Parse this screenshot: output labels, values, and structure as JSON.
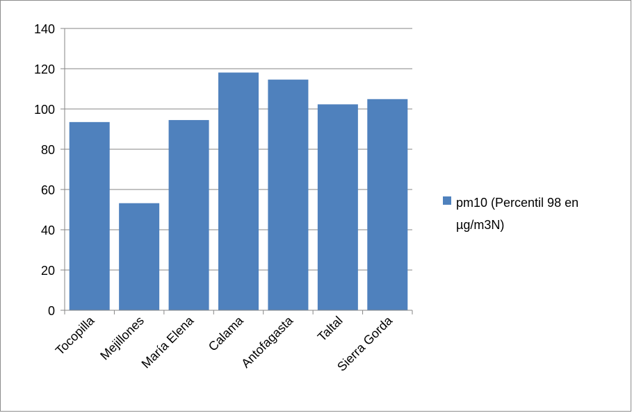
{
  "chart_data": {
    "type": "bar",
    "categories": [
      "Tocopilla",
      "Mejillones",
      "María Elena",
      "Calama",
      "Antofagasta",
      "Taltal",
      "Sierra Gorda"
    ],
    "series": [
      {
        "name": "pm10 (Percentil 98 en µg/m3N)",
        "color": "#4f81bd",
        "values": [
          93.5,
          53.2,
          94.5,
          118.1,
          114.6,
          102.3,
          104.9
        ]
      }
    ],
    "ylim": [
      0,
      140
    ],
    "yticks": [
      0,
      20,
      40,
      60,
      80,
      100,
      120,
      140
    ],
    "grid": true,
    "legend_position": "right",
    "legend_lines": [
      "pm10 (Percentil 98 en",
      "µg/m3N)"
    ]
  }
}
